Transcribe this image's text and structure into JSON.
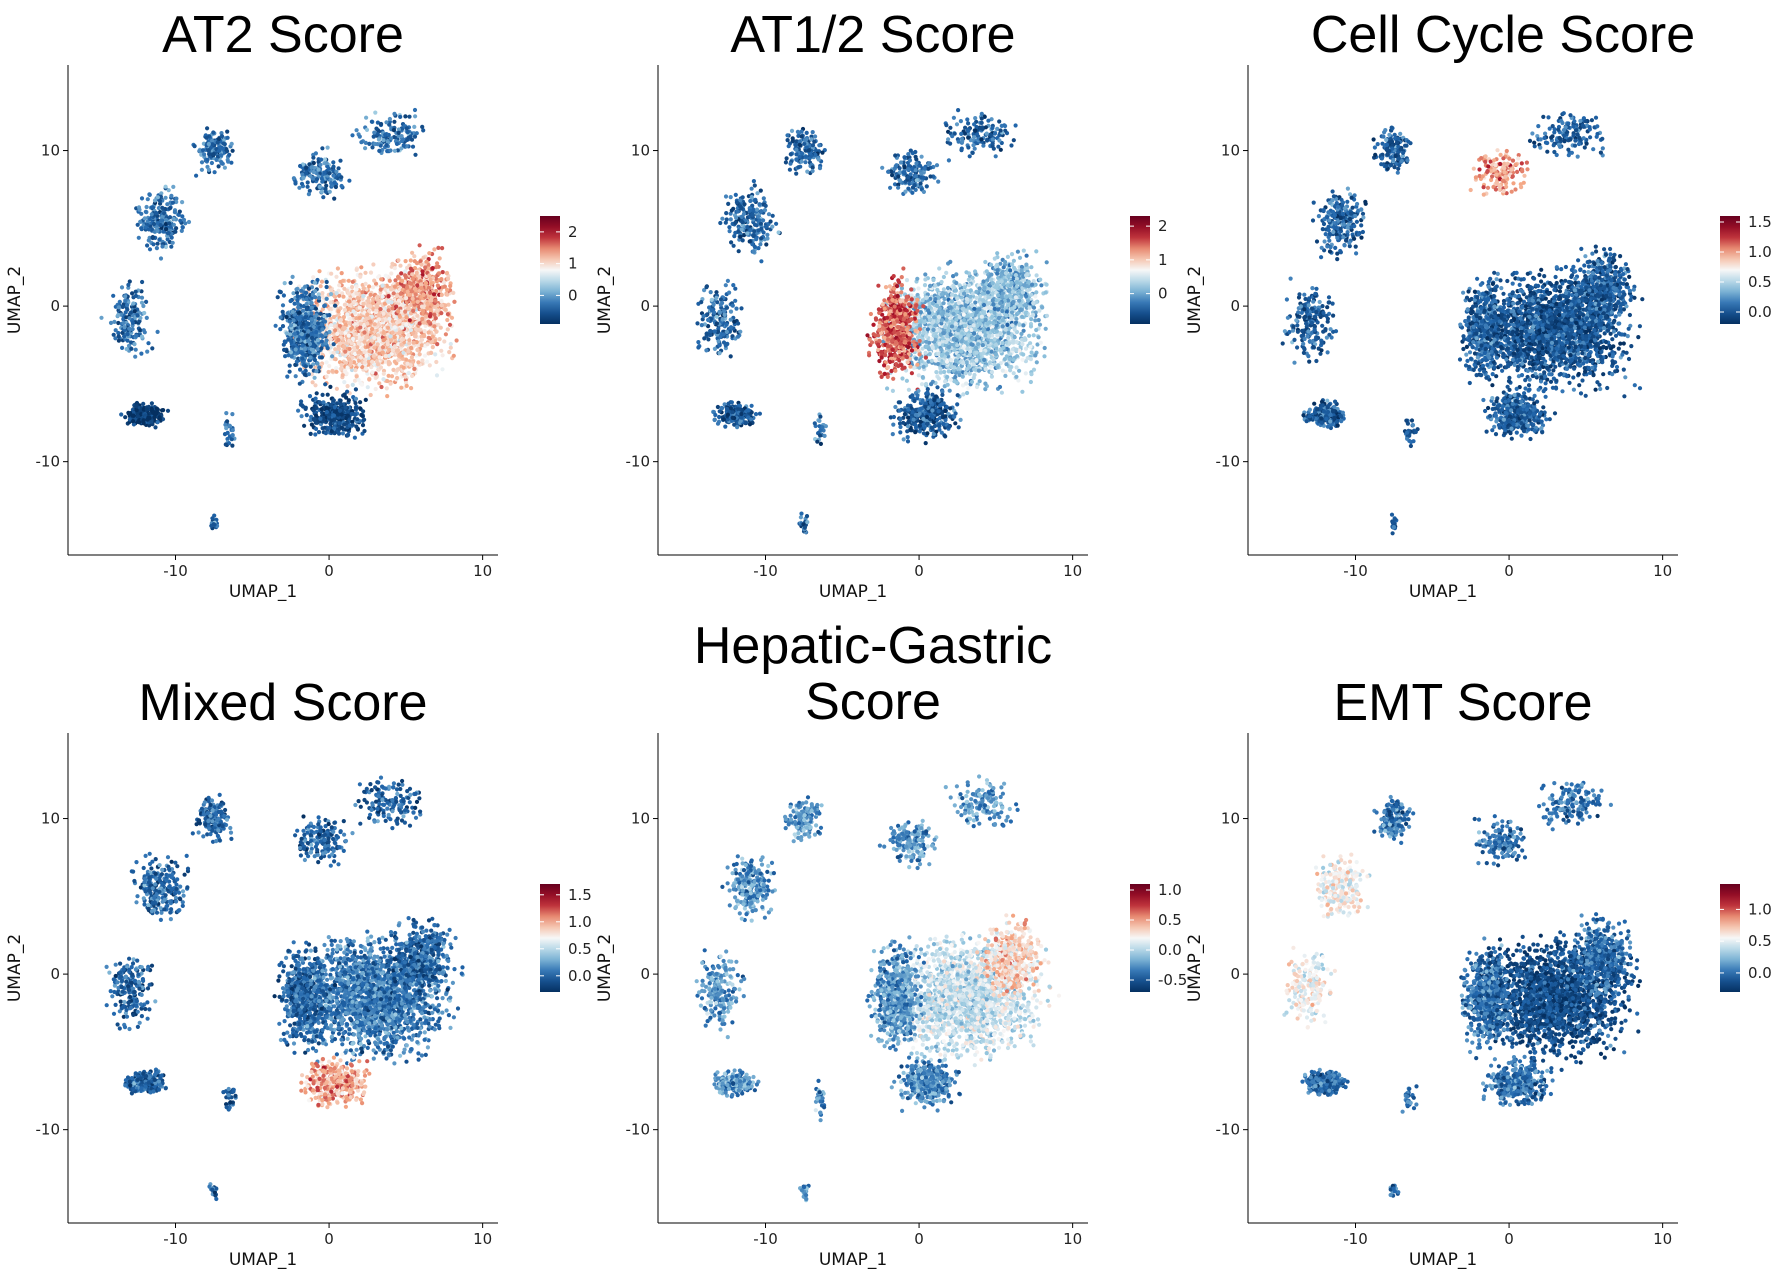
{
  "chart_data": [
    {
      "type": "scatter",
      "title": "AT2 Score",
      "xlabel": "UMAP_1",
      "ylabel": "UMAP_2",
      "xlim": [
        -17,
        11
      ],
      "ylim": [
        -16,
        15.5
      ],
      "xticks": [
        -10,
        0,
        10
      ],
      "yticks": [
        -10,
        0,
        10
      ],
      "tick_labels_x": [
        "-10",
        "0",
        "10"
      ],
      "tick_labels_y": [
        "-10",
        "0",
        "10"
      ],
      "grid": false,
      "legend_position": "right",
      "colorbar": {
        "min": -0.9,
        "max": 2.5,
        "ticks": [
          0,
          1,
          2
        ],
        "tick_labels": [
          "0",
          "1",
          "2"
        ]
      },
      "regions": [
        {
          "cluster": "main",
          "value": 1.1
        },
        {
          "cluster": "main-left",
          "value": -0.3
        },
        {
          "cluster": "main-right",
          "value": 1.4
        },
        {
          "cluster": "main-bottom",
          "value": -0.6
        },
        {
          "cluster": "lower-left",
          "value": -0.8
        },
        {
          "cluster": "other-islands",
          "value": -0.3
        }
      ]
    },
    {
      "type": "scatter",
      "title": "AT1/2 Score",
      "xlabel": "UMAP_1",
      "ylabel": "UMAP_2",
      "xlim": [
        -17,
        11
      ],
      "ylim": [
        -16,
        15.5
      ],
      "xticks": [
        -10,
        0,
        10
      ],
      "yticks": [
        -10,
        0,
        10
      ],
      "tick_labels_x": [
        "-10",
        "0",
        "10"
      ],
      "tick_labels_y": [
        "-10",
        "0",
        "10"
      ],
      "grid": false,
      "legend_position": "right",
      "colorbar": {
        "min": -0.9,
        "max": 2.3,
        "ticks": [
          0,
          1,
          2
        ],
        "tick_labels": [
          "0",
          "1",
          "2"
        ]
      },
      "regions": [
        {
          "cluster": "main",
          "value": 0.2
        },
        {
          "cluster": "main-left",
          "value": 1.5
        },
        {
          "cluster": "main-right",
          "value": 0.1
        },
        {
          "cluster": "main-bottom",
          "value": -0.5
        },
        {
          "cluster": "lower-left",
          "value": -0.5
        },
        {
          "cluster": "other-islands",
          "value": -0.4
        }
      ]
    },
    {
      "type": "scatter",
      "title": "Cell Cycle Score",
      "xlabel": "UMAP_1",
      "ylabel": "UMAP_2",
      "xlim": [
        -17,
        11
      ],
      "ylim": [
        -16,
        15.5
      ],
      "xticks": [
        -10,
        0,
        10
      ],
      "yticks": [
        -10,
        0,
        10
      ],
      "tick_labels_x": [
        "-10",
        "0",
        "10"
      ],
      "tick_labels_y": [
        "-10",
        "0",
        "10"
      ],
      "grid": false,
      "legend_position": "right",
      "colorbar": {
        "min": -0.2,
        "max": 1.6,
        "ticks": [
          0,
          0.5,
          1,
          1.5
        ],
        "tick_labels": [
          "0.0",
          "0.5",
          "1.0",
          "1.5"
        ]
      },
      "regions": [
        {
          "cluster": "main",
          "value": 0.0
        },
        {
          "cluster": "upper-mid-island",
          "value": 1.0
        },
        {
          "cluster": "other-islands",
          "value": 0.05
        }
      ]
    },
    {
      "type": "scatter",
      "title": "Mixed Score",
      "xlabel": "UMAP_1",
      "ylabel": "UMAP_2",
      "xlim": [
        -17,
        11
      ],
      "ylim": [
        -16,
        15.5
      ],
      "xticks": [
        -10,
        0,
        10
      ],
      "yticks": [
        -10,
        0,
        10
      ],
      "tick_labels_x": [
        "-10",
        "0",
        "10"
      ],
      "tick_labels_y": [
        "-10",
        "0",
        "10"
      ],
      "grid": false,
      "legend_position": "right",
      "colorbar": {
        "min": -0.3,
        "max": 1.7,
        "ticks": [
          0,
          0.5,
          1,
          1.5
        ],
        "tick_labels": [
          "0.0",
          "0.5",
          "1.0",
          "1.5"
        ]
      },
      "regions": [
        {
          "cluster": "main",
          "value": 0.1
        },
        {
          "cluster": "main-bottom",
          "value": 1.0
        },
        {
          "cluster": "other-islands",
          "value": 0.0
        }
      ]
    },
    {
      "type": "scatter",
      "title": "Hepatic-Gastric\nScore",
      "title_lines": [
        "Hepatic-Gastric",
        "Score"
      ],
      "xlabel": "UMAP_1",
      "ylabel": "UMAP_2",
      "xlim": [
        -17,
        11
      ],
      "ylim": [
        -16,
        15.5
      ],
      "xticks": [
        -10,
        0,
        10
      ],
      "yticks": [
        -10,
        0,
        10
      ],
      "tick_labels_x": [
        "-10",
        "0",
        "10"
      ],
      "tick_labels_y": [
        "-10",
        "0",
        "10"
      ],
      "grid": false,
      "legend_position": "right",
      "colorbar": {
        "min": -0.7,
        "max": 1.1,
        "ticks": [
          -0.5,
          0,
          0.5,
          1
        ],
        "tick_labels": [
          "-0.5",
          "0.0",
          "0.5",
          "1.0"
        ]
      },
      "regions": [
        {
          "cluster": "main",
          "value": 0.05
        },
        {
          "cluster": "main-right",
          "value": 0.35
        },
        {
          "cluster": "main-bottom",
          "value": -0.3
        },
        {
          "cluster": "other-islands",
          "value": -0.25
        }
      ]
    },
    {
      "type": "scatter",
      "title": "EMT Score",
      "xlabel": "UMAP_1",
      "ylabel": "UMAP_2",
      "xlim": [
        -17,
        11
      ],
      "ylim": [
        -16,
        15.5
      ],
      "xticks": [
        -10,
        0,
        10
      ],
      "yticks": [
        -10,
        0,
        10
      ],
      "tick_labels_x": [
        "-10",
        "0",
        "10"
      ],
      "tick_labels_y": [
        "-10",
        "0",
        "10"
      ],
      "grid": false,
      "legend_position": "right",
      "colorbar": {
        "min": -0.3,
        "max": 1.4,
        "ticks": [
          0,
          0.5,
          1
        ],
        "tick_labels": [
          "0.0",
          "0.5",
          "1.0"
        ]
      },
      "regions": [
        {
          "cluster": "main",
          "value": -0.15
        },
        {
          "cluster": "left-islands",
          "value": 0.55
        },
        {
          "cluster": "other-islands",
          "value": 0.0
        }
      ]
    }
  ],
  "colors": {
    "low": "#2166ac",
    "mid_low": "#92c5de",
    "mid": "#f7f7f7",
    "mid_high": "#f4a582",
    "high": "#b2182b",
    "deep_low": "#053061",
    "deep_high": "#67001f"
  }
}
